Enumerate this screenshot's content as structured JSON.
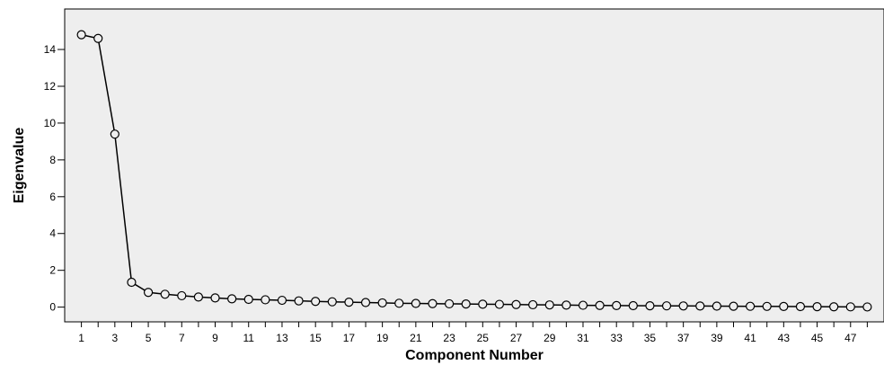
{
  "chart_data": {
    "type": "line",
    "title": "",
    "xlabel": "Component Number",
    "ylabel": "Eigenvalue",
    "x": [
      1,
      2,
      3,
      4,
      5,
      6,
      7,
      8,
      9,
      10,
      11,
      12,
      13,
      14,
      15,
      16,
      17,
      18,
      19,
      20,
      21,
      22,
      23,
      24,
      25,
      26,
      27,
      28,
      29,
      30,
      31,
      32,
      33,
      34,
      35,
      36,
      37,
      38,
      39,
      40,
      41,
      42,
      43,
      44,
      45,
      46,
      47,
      48
    ],
    "x_tick_labels": [
      "1",
      "3",
      "5",
      "7",
      "9",
      "11",
      "13",
      "15",
      "17",
      "19",
      "21",
      "23",
      "25",
      "27",
      "29",
      "31",
      "33",
      "35",
      "37",
      "39",
      "41",
      "43",
      "45",
      "47"
    ],
    "y_tick_labels": [
      "0",
      "2",
      "4",
      "6",
      "8",
      "10",
      "12",
      "14"
    ],
    "ylim": [
      -0.8,
      16.2
    ],
    "xlim": [
      0,
      49
    ],
    "series": [
      {
        "values": [
          14.8,
          14.6,
          9.4,
          1.35,
          0.8,
          0.7,
          0.62,
          0.55,
          0.5,
          0.45,
          0.42,
          0.4,
          0.37,
          0.34,
          0.31,
          0.29,
          0.27,
          0.25,
          0.23,
          0.21,
          0.2,
          0.19,
          0.18,
          0.17,
          0.16,
          0.15,
          0.14,
          0.13,
          0.12,
          0.11,
          0.1,
          0.09,
          0.085,
          0.08,
          0.075,
          0.07,
          0.065,
          0.06,
          0.055,
          0.05,
          0.045,
          0.04,
          0.035,
          0.03,
          0.025,
          0.02,
          0.015,
          0.01
        ]
      }
    ],
    "grid": false,
    "legend": "none",
    "colors": {
      "plot_background": "#eeeeee",
      "line": "#000000",
      "marker_stroke": "#000000",
      "frame": "#000000"
    }
  }
}
